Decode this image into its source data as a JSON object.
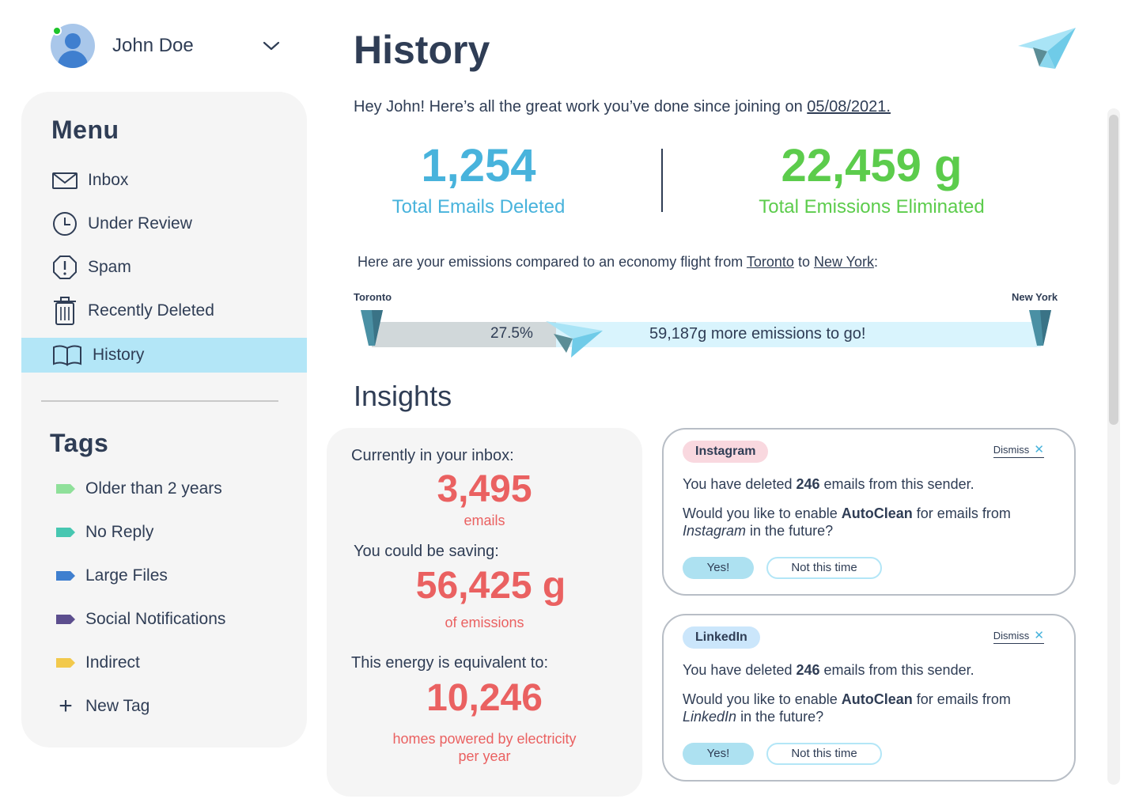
{
  "user": {
    "name": "John Doe",
    "status_color": "#1ec42a"
  },
  "menu": {
    "title": "Menu",
    "items": [
      {
        "label": "Inbox",
        "icon": "mail-icon"
      },
      {
        "label": "Under Review",
        "icon": "clock-icon"
      },
      {
        "label": "Spam",
        "icon": "alert-icon"
      },
      {
        "label": "Recently Deleted",
        "icon": "trash-icon"
      },
      {
        "label": "History",
        "icon": "book-icon",
        "active": true
      }
    ]
  },
  "tags": {
    "title": "Tags",
    "items": [
      {
        "label": "Older than 2 years",
        "color": "#8fe09a"
      },
      {
        "label": "No Reply",
        "color": "#47c7b1"
      },
      {
        "label": "Large Files",
        "color": "#3f7fcf"
      },
      {
        "label": "Social Notifications",
        "color": "#5c4e8e"
      },
      {
        "label": "Indirect",
        "color": "#f2c94c"
      }
    ],
    "new_tag": "New Tag"
  },
  "header": {
    "title": "History",
    "intro_prefix": "Hey John! Here’s all the great work you’ve done since joining on ",
    "join_date": "05/08/2021."
  },
  "stats": {
    "emails_deleted": "1,254",
    "emails_deleted_label": "Total Emails Deleted",
    "emissions": "22,459 g",
    "emissions_label": "Total Emissions Eliminated"
  },
  "flight": {
    "intro_prefix": "Here are your emissions compared to an economy flight from ",
    "origin": "Toronto",
    "connector": " to ",
    "destination": "New York",
    "suffix": ":",
    "origin_label": "Toronto",
    "destination_label": "New York",
    "progress_percent": 27.5,
    "progress_text": "27.5%",
    "remaining_text": "59,187g more emissions to go!"
  },
  "insights": {
    "title": "Insights",
    "inbox_label": "Currently in your inbox:",
    "inbox_count": "3,495",
    "inbox_unit": "emails",
    "saving_label": "You could be saving:",
    "saving_value": "56,425 g",
    "saving_unit": "of emissions",
    "equivalent_label": "This energy is equivalent to:",
    "equivalent_value": "10,246",
    "equivalent_unit_line1": "homes powered by electricity",
    "equivalent_unit_line2": "per year"
  },
  "senders": [
    {
      "name": "Instagram",
      "pill_color": "#f9d8df",
      "dismiss": "Dismiss",
      "deleted_prefix": "You have deleted ",
      "deleted_count": "246",
      "deleted_suffix": " emails from this sender.",
      "question_prefix": "Would you like to enable ",
      "feature": "AutoClean",
      "question_mid": " for emails from ",
      "question_sender": "Instagram",
      "question_suffix": " in the future?",
      "yes": "Yes!",
      "no": "Not this time"
    },
    {
      "name": "LinkedIn",
      "pill_color": "#cbe6fb",
      "dismiss": "Dismiss",
      "deleted_prefix": "You have deleted ",
      "deleted_count": "246",
      "deleted_suffix": " emails from this sender.",
      "question_prefix": "Would you like to enable ",
      "feature": "AutoClean",
      "question_mid": " for emails from ",
      "question_sender": "LinkedIn",
      "question_suffix": " in the future?",
      "yes": "Yes!",
      "no": "Not this time"
    }
  ],
  "colors": {
    "accent_blue": "#48b3dc",
    "accent_green": "#5ccc4c",
    "accent_red": "#ea6161",
    "active_bg": "#b3e6f7",
    "text": "#2f3d55"
  }
}
